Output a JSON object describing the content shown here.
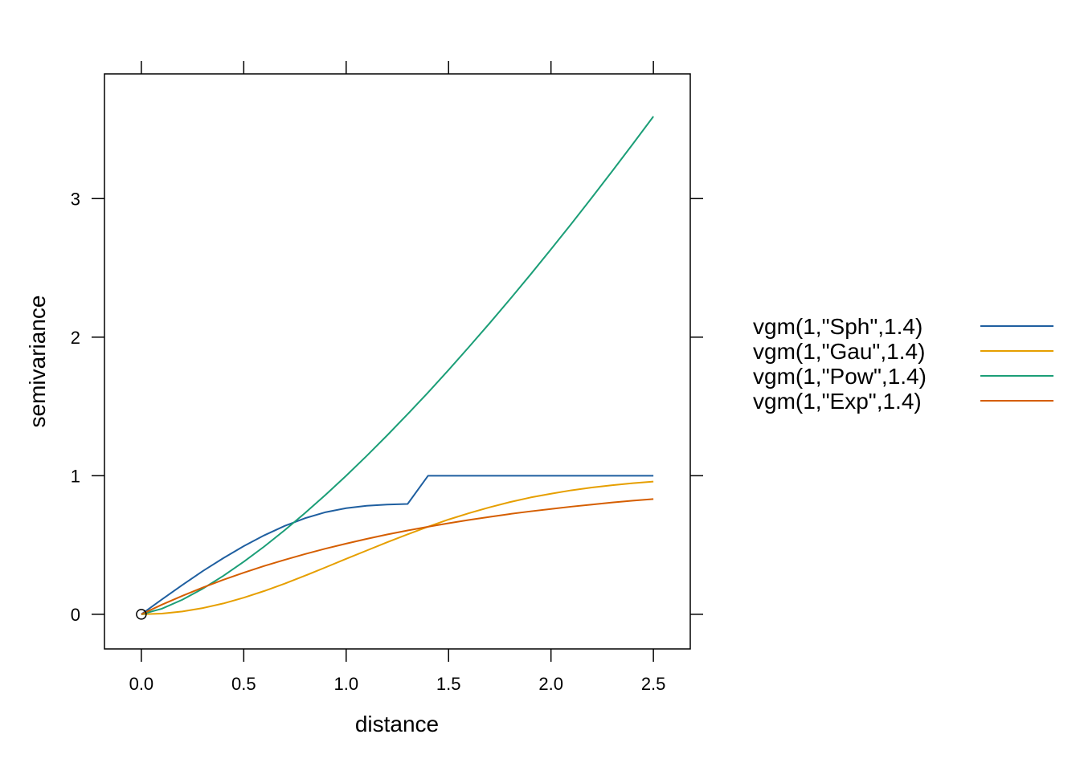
{
  "chart_data": {
    "type": "line",
    "xlabel": "distance",
    "ylabel": "semivariance",
    "xlim": [
      -0.18,
      2.68
    ],
    "ylim": [
      -0.25,
      3.9
    ],
    "xticks": [
      0.0,
      0.5,
      1.0,
      1.5,
      2.0,
      2.5
    ],
    "xtick_labels": [
      "0.0",
      "0.5",
      "1.0",
      "1.5",
      "2.0",
      "2.5"
    ],
    "yticks": [
      0,
      1,
      2,
      3
    ],
    "ytick_labels": [
      "0",
      "1",
      "2",
      "3"
    ],
    "grid": false,
    "legend_position": "right",
    "origin_marker": {
      "x": 0,
      "y": 0,
      "shape": "open-circle"
    },
    "series": [
      {
        "name": "vgm(1,\"Sph\",1.4)",
        "color": "#1f5fa0",
        "x": [
          0.0,
          0.1,
          0.2,
          0.3,
          0.4,
          0.5,
          0.6,
          0.7,
          0.8,
          0.9,
          1.0,
          1.1,
          1.2,
          1.3,
          1.4,
          1.6,
          1.8,
          2.0,
          2.2,
          2.5
        ],
        "y": [
          0.0,
          0.107,
          0.211,
          0.312,
          0.405,
          0.492,
          0.57,
          0.638,
          0.694,
          0.737,
          0.766,
          0.783,
          0.792,
          0.796,
          1.0,
          1.0,
          1.0,
          1.0,
          1.0,
          1.0
        ]
      },
      {
        "name": "vgm(1,\"Gau\",1.4)",
        "color": "#e69f00",
        "x": [
          0.0,
          0.1,
          0.2,
          0.3,
          0.4,
          0.5,
          0.6,
          0.7,
          0.8,
          0.9,
          1.0,
          1.1,
          1.2,
          1.3,
          1.4,
          1.5,
          1.6,
          1.7,
          1.8,
          1.9,
          2.0,
          2.1,
          2.2,
          2.3,
          2.4,
          2.5
        ],
        "y": [
          0.0,
          0.005,
          0.02,
          0.045,
          0.078,
          0.12,
          0.168,
          0.221,
          0.279,
          0.339,
          0.4,
          0.46,
          0.52,
          0.577,
          0.632,
          0.684,
          0.73,
          0.772,
          0.81,
          0.843,
          0.87,
          0.895,
          0.915,
          0.932,
          0.946,
          0.958
        ]
      },
      {
        "name": "vgm(1,\"Pow\",1.4)",
        "color": "#1b9e77",
        "x": [
          0.0,
          0.1,
          0.2,
          0.3,
          0.4,
          0.5,
          0.6,
          0.7,
          0.8,
          0.9,
          1.0,
          1.1,
          1.2,
          1.3,
          1.4,
          1.5,
          1.6,
          1.7,
          1.8,
          1.9,
          2.0,
          2.1,
          2.2,
          2.3,
          2.4,
          2.5
        ],
        "y": [
          0.0,
          0.04,
          0.105,
          0.185,
          0.277,
          0.379,
          0.489,
          0.607,
          0.732,
          0.863,
          1.0,
          1.143,
          1.291,
          1.444,
          1.601,
          1.763,
          1.93,
          2.1,
          2.274,
          2.452,
          2.634,
          2.819,
          3.008,
          3.2,
          3.395,
          3.593
        ]
      },
      {
        "name": "vgm(1,\"Exp\",1.4)",
        "color": "#d55e00",
        "x": [
          0.0,
          0.1,
          0.2,
          0.3,
          0.4,
          0.5,
          0.6,
          0.7,
          0.8,
          0.9,
          1.0,
          1.1,
          1.2,
          1.3,
          1.4,
          1.5,
          1.6,
          1.7,
          1.8,
          1.9,
          2.0,
          2.1,
          2.2,
          2.3,
          2.4,
          2.5
        ],
        "y": [
          0.0,
          0.069,
          0.133,
          0.193,
          0.249,
          0.3,
          0.349,
          0.393,
          0.435,
          0.474,
          0.51,
          0.544,
          0.576,
          0.605,
          0.632,
          0.657,
          0.681,
          0.703,
          0.724,
          0.743,
          0.76,
          0.777,
          0.792,
          0.807,
          0.82,
          0.832
        ]
      }
    ]
  }
}
